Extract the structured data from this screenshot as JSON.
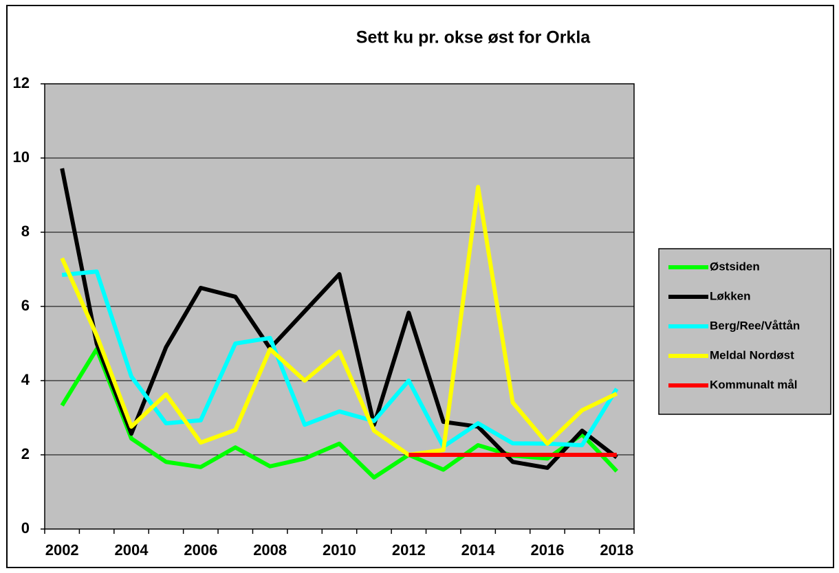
{
  "chart_data": {
    "type": "line",
    "title": "Sett ku pr. okse øst for Orkla",
    "categories": [
      "2002",
      null,
      "2004",
      null,
      "2006",
      null,
      "2008",
      null,
      "2010",
      null,
      "2012",
      null,
      "2014",
      null,
      "2016",
      null,
      "2018"
    ],
    "series": [
      {
        "name": "Østsiden",
        "color": "#00ff00",
        "values": [
          3.33,
          4.85,
          2.44,
          1.81,
          1.67,
          2.2,
          1.69,
          1.9,
          2.3,
          1.39,
          2.0,
          1.6,
          2.26,
          1.98,
          1.9,
          2.55,
          1.56
        ]
      },
      {
        "name": "Løkken",
        "color": "#000000",
        "values": [
          9.72,
          5.0,
          2.57,
          4.9,
          6.5,
          6.26,
          4.87,
          5.87,
          6.87,
          2.81,
          5.83,
          2.89,
          2.76,
          1.81,
          1.65,
          2.65,
          1.93
        ]
      },
      {
        "name": "Berg/Ree/Våttån",
        "color": "#00ffff",
        "values": [
          6.85,
          6.94,
          4.11,
          2.85,
          2.93,
          5.0,
          5.15,
          2.81,
          3.17,
          2.91,
          4.0,
          2.22,
          2.85,
          2.31,
          2.3,
          2.26,
          3.78
        ]
      },
      {
        "name": "Meldal Nordøst",
        "color": "#ffff00",
        "values": [
          7.3,
          5.22,
          2.76,
          3.63,
          2.33,
          2.67,
          4.85,
          4.0,
          4.78,
          2.65,
          2.0,
          2.13,
          9.22,
          3.41,
          2.3,
          3.2,
          3.65
        ]
      },
      {
        "name": "Kommunalt mål",
        "color": "#ff0000",
        "values": [
          null,
          null,
          null,
          null,
          null,
          null,
          null,
          null,
          null,
          null,
          2,
          2,
          2,
          2,
          2,
          2,
          2
        ]
      }
    ],
    "ylim": [
      0,
      12
    ],
    "yticks": [
      0,
      2,
      4,
      6,
      8,
      10,
      12
    ],
    "grid": true,
    "legend": "right"
  }
}
